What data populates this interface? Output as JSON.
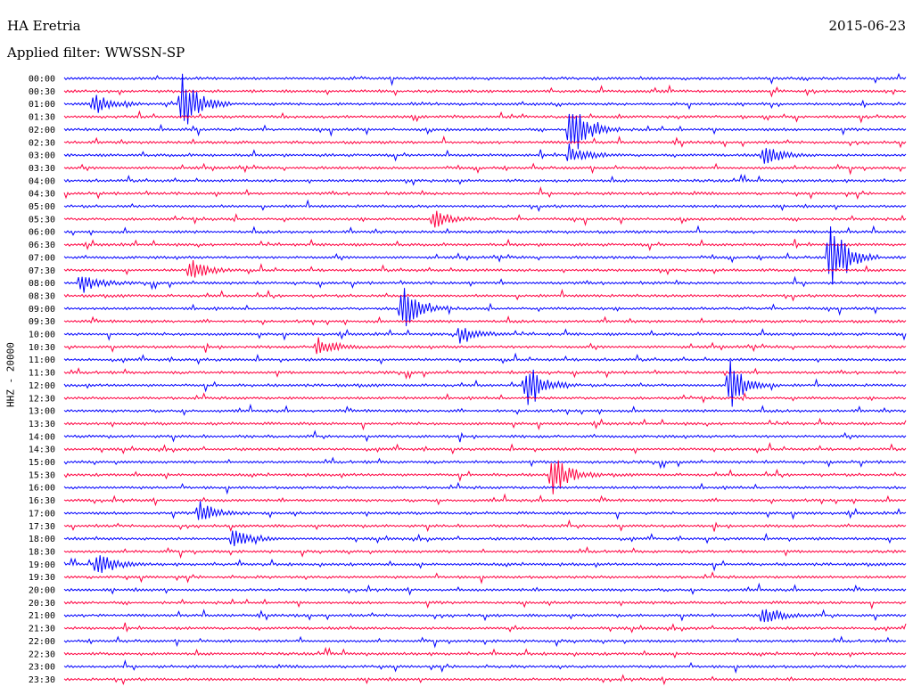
{
  "header": {
    "station": "HA Eretria",
    "date": "2015-06-23",
    "filter": "Applied filter: WWSSN-SP"
  },
  "chart_data": {
    "type": "line",
    "title": "HA Eretria",
    "subtitle": "Applied filter: WWSSN-SP",
    "ylabel": "HHZ - 20000",
    "xlabel": "",
    "rows": [
      "00:00",
      "00:30",
      "01:00",
      "01:30",
      "02:00",
      "02:30",
      "03:00",
      "03:30",
      "04:00",
      "04:30",
      "05:00",
      "05:30",
      "06:00",
      "06:30",
      "07:00",
      "07:30",
      "08:00",
      "08:30",
      "09:00",
      "09:30",
      "10:00",
      "10:30",
      "11:00",
      "11:30",
      "12:00",
      "12:30",
      "13:00",
      "13:30",
      "14:00",
      "14:30",
      "15:00",
      "15:30",
      "16:00",
      "16:30",
      "17:00",
      "17:30",
      "18:00",
      "18:30",
      "19:00",
      "19:30",
      "20:00",
      "20:30",
      "21:00",
      "21:30",
      "22:00",
      "22:30",
      "23:00",
      "23:30"
    ],
    "colors": [
      "#0000ff",
      "#ff0040"
    ],
    "events": [
      {
        "row": 2,
        "x": 0.035,
        "amp": 14
      },
      {
        "row": 2,
        "x": 0.14,
        "amp": 36
      },
      {
        "row": 4,
        "x": 0.6,
        "amp": 40
      },
      {
        "row": 6,
        "x": 0.6,
        "amp": 12
      },
      {
        "row": 6,
        "x": 0.83,
        "amp": 14
      },
      {
        "row": 11,
        "x": 0.44,
        "amp": 10
      },
      {
        "row": 14,
        "x": 0.91,
        "amp": 45
      },
      {
        "row": 15,
        "x": 0.15,
        "amp": 14
      },
      {
        "row": 16,
        "x": 0.02,
        "amp": 12
      },
      {
        "row": 18,
        "x": 0.4,
        "amp": 30
      },
      {
        "row": 20,
        "x": 0.47,
        "amp": 12
      },
      {
        "row": 21,
        "x": 0.3,
        "amp": 12
      },
      {
        "row": 24,
        "x": 0.55,
        "amp": 30
      },
      {
        "row": 24,
        "x": 0.79,
        "amp": 30
      },
      {
        "row": 31,
        "x": 0.58,
        "amp": 25
      },
      {
        "row": 34,
        "x": 0.16,
        "amp": 14
      },
      {
        "row": 36,
        "x": 0.2,
        "amp": 12
      },
      {
        "row": 38,
        "x": 0.04,
        "amp": 14
      },
      {
        "row": 42,
        "x": 0.83,
        "amp": 12
      }
    ]
  }
}
